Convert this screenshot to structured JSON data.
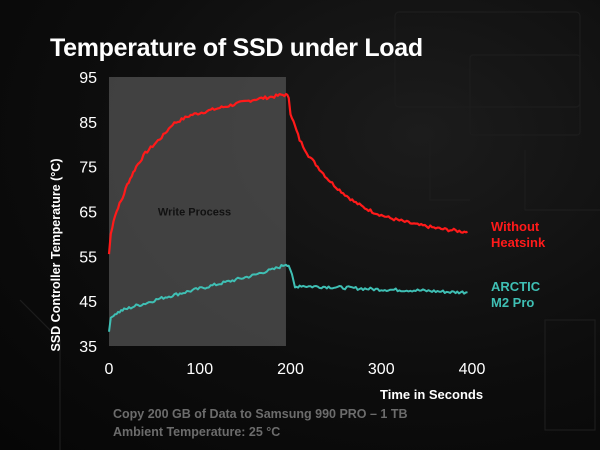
{
  "chart_data": {
    "type": "line",
    "title": "Temperature of SSD under Load",
    "xlabel": "Time in Seconds",
    "ylabel": "SSD Controller Temperature (°C)",
    "xlim": [
      0,
      400
    ],
    "ylim": [
      35,
      95
    ],
    "xticks": [
      "0",
      "100",
      "200",
      "300",
      "400"
    ],
    "yticks": [
      "35",
      "45",
      "55",
      "65",
      "75",
      "85",
      "95"
    ],
    "shaded_region": {
      "x_start": 0,
      "x_end": 195,
      "label": "Write Process"
    },
    "series": [
      {
        "name": "Without Heatsink",
        "color": "#ff1a1a",
        "x": [
          0,
          2,
          5,
          10,
          15,
          20,
          25,
          30,
          40,
          50,
          60,
          70,
          80,
          90,
          100,
          110,
          120,
          130,
          140,
          150,
          160,
          170,
          180,
          190,
          195,
          198,
          200,
          205,
          210,
          220,
          230,
          240,
          250,
          260,
          270,
          280,
          290,
          300,
          310,
          320,
          330,
          340,
          350,
          360,
          370,
          380,
          390,
          395
        ],
        "values": [
          55.5,
          60,
          63,
          66,
          68,
          71,
          73,
          75,
          78,
          80,
          82,
          84.5,
          85.5,
          86.5,
          87,
          87.5,
          88,
          88.5,
          89,
          89.5,
          90,
          90.3,
          90.6,
          91,
          91,
          90.5,
          87,
          84,
          81,
          77.5,
          75,
          72.5,
          70.5,
          68.8,
          67.2,
          66,
          65,
          64.2,
          63.5,
          63,
          62.5,
          62,
          61.7,
          61.3,
          61,
          60.8,
          60.5,
          60.5
        ]
      },
      {
        "name": "ARCTIC M2 Pro",
        "color": "#3fbfb4",
        "x": [
          0,
          2,
          5,
          10,
          15,
          20,
          30,
          40,
          50,
          60,
          70,
          80,
          90,
          100,
          110,
          120,
          130,
          140,
          150,
          160,
          170,
          180,
          190,
          195,
          198,
          200,
          205,
          210,
          220,
          240,
          260,
          280,
          300,
          320,
          340,
          360,
          380,
          395
        ],
        "values": [
          38.5,
          41,
          42,
          42.5,
          43,
          43.3,
          44,
          44.5,
          45.2,
          45.8,
          46.3,
          46.8,
          47.3,
          47.8,
          48.3,
          48.8,
          49.3,
          49.8,
          50.3,
          50.8,
          51.5,
          52,
          52.8,
          53.3,
          53,
          52,
          48,
          48.5,
          48.3,
          48.2,
          48,
          47.8,
          47.6,
          47.5,
          47.4,
          47.2,
          47,
          47
        ]
      }
    ],
    "legend": [
      "Without Heatsink",
      "ARCTIC M2 Pro"
    ]
  },
  "legend_labels": {
    "red_line1": "Without",
    "red_line2": "Heatsink",
    "teal_line1": "ARCTIC",
    "teal_line2": "M2 Pro"
  },
  "footer": {
    "line1": "Copy 200 GB of Data to Samsung 990 PRO  – 1 TB",
    "line2": "Ambient Temperature: 25 °C"
  }
}
